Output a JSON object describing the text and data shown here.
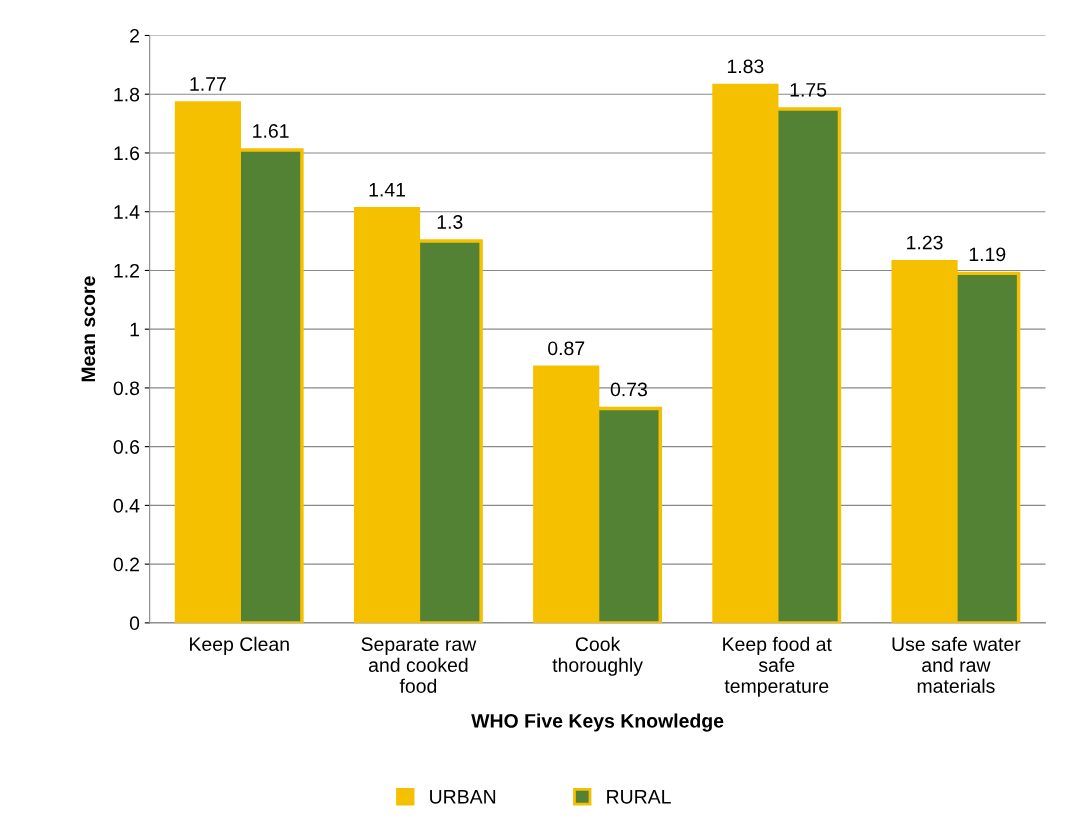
{
  "chart_data": {
    "type": "bar",
    "xlabel": "WHO Five Keys Knowledge",
    "ylabel": "Mean score",
    "categories": [
      "Keep Clean",
      "Separate raw\nand cooked\nfood",
      "Cook\nthoroughly",
      "Keep food at\nsafe\ntemperature",
      "Use safe water\nand raw\nmaterials"
    ],
    "series": [
      {
        "name": "URBAN",
        "color": "#f5c000",
        "values": [
          1.77,
          1.41,
          0.87,
          1.83,
          1.23
        ]
      },
      {
        "name": "RURAL",
        "color": "#548235",
        "values": [
          1.61,
          1.3,
          0.73,
          1.75,
          1.19
        ]
      }
    ],
    "ylim": [
      0,
      2
    ],
    "yticks": [
      0,
      0.2,
      0.4,
      0.6,
      0.8,
      1,
      1.2,
      1.4,
      1.6,
      1.8,
      2
    ],
    "grid": "y",
    "legend": "bottom",
    "data_labels": true
  }
}
